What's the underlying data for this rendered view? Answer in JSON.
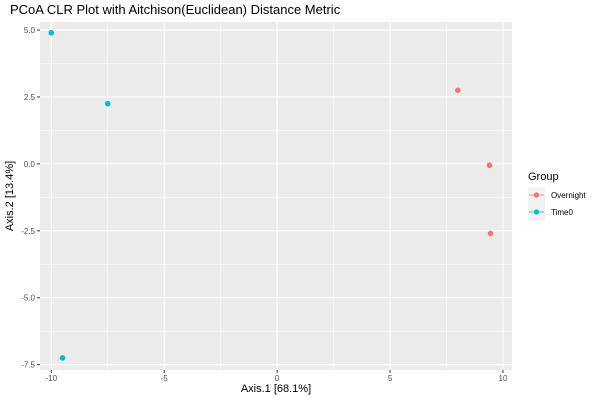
{
  "chart_data": {
    "type": "scatter",
    "title": "PCoA CLR Plot with Aitchison(Euclidean) Distance Metric",
    "xlabel": "Axis.1   [68.1%]",
    "ylabel": "Axis.2   [13.4%]",
    "xlim": [
      -10.5,
      10.4
    ],
    "ylim": [
      -7.7,
      5.3
    ],
    "x_ticks": [
      -10,
      -5,
      0,
      5,
      10
    ],
    "x_tick_labels": [
      "-10",
      "-5",
      "0",
      "5",
      "10"
    ],
    "y_ticks": [
      5.0,
      2.5,
      0.0,
      -2.5,
      -5.0,
      -7.5
    ],
    "y_tick_labels": [
      "5.0",
      "2.5",
      "0.0",
      "-2.5",
      "-5.0",
      "-7.5"
    ],
    "grid": true,
    "legend_position": "right",
    "legend_title": "Group",
    "series": [
      {
        "name": "Overnight",
        "color": "#f8766d",
        "points": [
          {
            "x": 8.0,
            "y": 2.75
          },
          {
            "x": 9.4,
            "y": -0.05
          },
          {
            "x": 9.45,
            "y": -2.6
          }
        ]
      },
      {
        "name": "Time0",
        "color": "#00bfc4",
        "points": [
          {
            "x": -10.0,
            "y": 4.9
          },
          {
            "x": -7.5,
            "y": 2.25
          },
          {
            "x": -9.5,
            "y": -7.25
          }
        ]
      }
    ],
    "panel_background": "#ebebeb",
    "grid_color": "#ffffff"
  }
}
